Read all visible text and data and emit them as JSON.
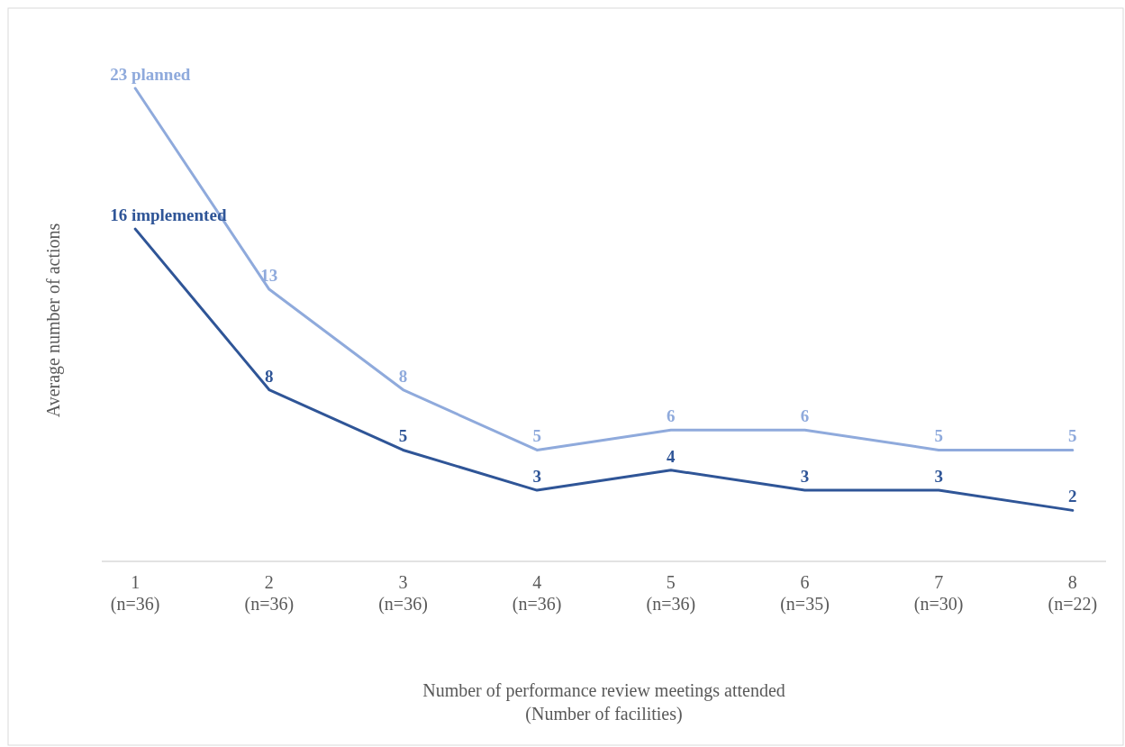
{
  "chart_data": {
    "type": "line",
    "xlabel": "Number of performance review meetings attended\n(Number of facilities)",
    "ylabel": "Average number of actions",
    "categories": [
      "1\n(n=36)",
      "2\n(n=36)",
      "3\n(n=36)",
      "4\n(n=36)",
      "5\n(n=36)",
      "6\n(n=35)",
      "7\n(n=30)",
      "8\n(n=22)"
    ],
    "series": [
      {
        "name": "planned",
        "color": "#8faadc",
        "values": [
          23,
          13,
          8,
          5,
          6,
          6,
          5,
          5
        ],
        "value_labels": [
          "23",
          "13",
          "8",
          "5",
          "6",
          "6",
          "5",
          "5"
        ]
      },
      {
        "name": "implemented",
        "color": "#2f5597",
        "values": [
          16,
          8,
          5,
          3,
          4,
          3,
          3,
          2
        ],
        "value_labels": [
          "16",
          "8",
          "5",
          "3",
          "4",
          "3",
          "3",
          "2"
        ]
      }
    ],
    "line_style": "solid",
    "tick_labels": "x"
  }
}
